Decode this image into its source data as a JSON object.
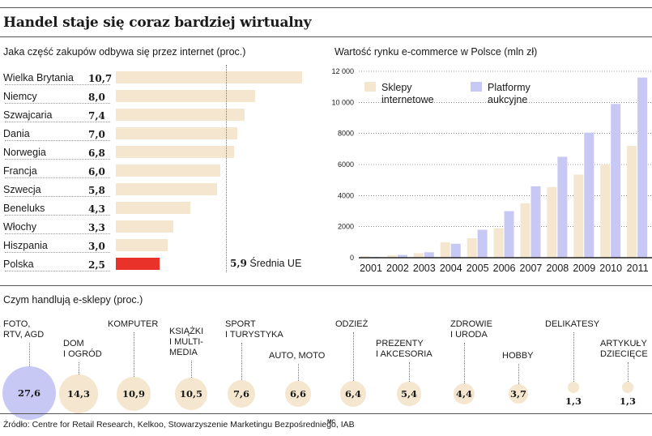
{
  "title": "Handel staje się coraz bardziej wirtualny",
  "colors": {
    "beige": "#f4e6cf",
    "lavender": "#c8c8f4",
    "red": "#e8322a",
    "avg": "#6a6adc"
  },
  "chart_data": [
    {
      "type": "bar",
      "orientation": "horizontal",
      "title": "Jaka część zakupów odbywa się przez internet (proc.)",
      "categories": [
        "Wielka Brytania",
        "Niemcy",
        "Szwajcaria",
        "Dania",
        "Norwegia",
        "Francja",
        "Szwecja",
        "Beneluks",
        "Włochy",
        "Hiszpania",
        "Polska"
      ],
      "values": [
        10.7,
        8.0,
        7.4,
        7.0,
        6.8,
        6.0,
        5.8,
        4.3,
        3.3,
        3.0,
        2.5
      ],
      "value_labels": [
        "10,7",
        "8,0",
        "7,4",
        "7,0",
        "6,8",
        "6,0",
        "5,8",
        "4,3",
        "3,3",
        "3,0",
        "2,5"
      ],
      "highlight": "Polska",
      "xlim": [
        0,
        10.7
      ],
      "reference": {
        "value": 5.9,
        "value_label": "5,9",
        "label": "Średnia UE"
      }
    },
    {
      "type": "bar",
      "title": "Wartość rynku e-commerce w Polsce (mln zł)",
      "categories": [
        "2001",
        "2002",
        "2003",
        "2004",
        "2005",
        "2006",
        "2007",
        "2008",
        "2009",
        "2010",
        "2011"
      ],
      "series": [
        {
          "name": "Sklepy internetowe",
          "legend_lines": [
            "Sklepy",
            "internetowe"
          ],
          "values": [
            100,
            150,
            290,
            1000,
            1250,
            1900,
            3500,
            4550,
            5350,
            6000,
            7200
          ]
        },
        {
          "name": "Platformy aukcyjne",
          "legend_lines": [
            "Platformy",
            "aukcyjne"
          ],
          "values": [
            50,
            180,
            350,
            900,
            1800,
            3000,
            4600,
            6500,
            8050,
            9900,
            11600
          ]
        }
      ],
      "ylim": [
        0,
        12000
      ],
      "yticks": [
        0,
        2000,
        4000,
        6000,
        8000,
        10000,
        12000
      ],
      "ytick_labels": [
        "0",
        "2000",
        "4000",
        "6000",
        "8000",
        "10 000",
        "12 000"
      ],
      "legend_position": "top-left"
    },
    {
      "type": "bubble",
      "title": "Czym handlują e-sklepy (proc.)",
      "categories": [
        "FOTO,\nRTV, AGD",
        "DOM\nI OGRÓD",
        "KOMPUTER",
        "KSIĄŻKI\nI MULTI-\nMEDIA",
        "SPORT\nI TURYSTYKA",
        "AUTO, MOTO",
        "ODZIEŻ",
        "PREZENTY\nI AKCESORIA",
        "ZDROWIE\nI URODA",
        "HOBBY",
        "DELIKATESY",
        "ARTYKUŁY\nDZIECIĘCE"
      ],
      "values": [
        27.6,
        14.3,
        10.9,
        10.5,
        7.6,
        6.6,
        6.4,
        5.4,
        4.4,
        3.7,
        1.3,
        1.3
      ],
      "value_labels": [
        "27,6",
        "14,3",
        "10,9",
        "10,5",
        "7,6",
        "6,6",
        "6,4",
        "5,4",
        "4,4",
        "3,7",
        "1,3",
        "1,3"
      ]
    }
  ],
  "source": "Źródło: Centre for Retail Research, Kelkoo, Stowarzyszenie Marketingu Bezpośredniego, IAB",
  "author_mark": "MC"
}
